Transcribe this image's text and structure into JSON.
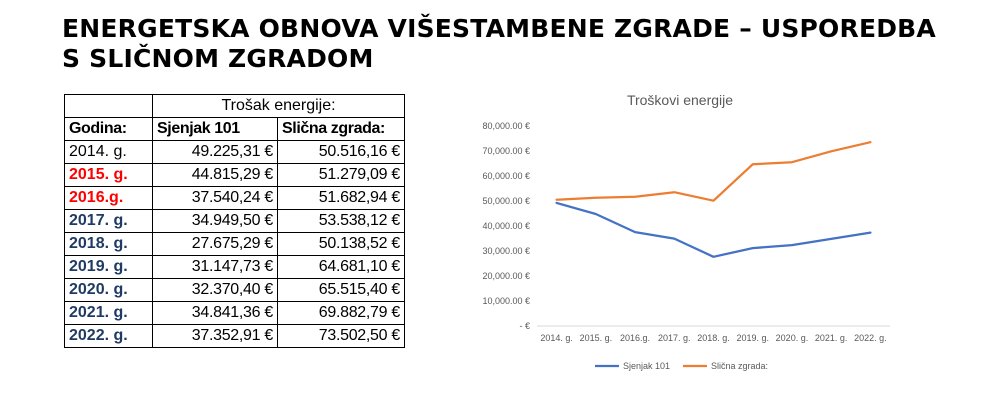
{
  "heading": {
    "line1": "ENERGETSKA OBNOVA VIŠESTAMBENE ZGRADE – USPOREDBA",
    "line2": "S SLIČNOM ZGRADOM"
  },
  "table": {
    "group_header": "Trošak energije:",
    "columns": [
      "Godina:",
      "Sjenjak 101",
      "Slična zgrada:"
    ],
    "rows": [
      {
        "year": "2014. g.",
        "a": "49.225,31 €",
        "b": "50.516,16 €",
        "color": "#000000"
      },
      {
        "year": "2015. g.",
        "a": "44.815,29 €",
        "b": "51.279,09 €",
        "color": "#ff0000"
      },
      {
        "year": "2016.g.",
        "a": "37.540,24 €",
        "b": "51.682,94 €",
        "color": "#ff0000"
      },
      {
        "year": "2017. g.",
        "a": "34.949,50 €",
        "b": "53.538,12 €",
        "color": "#1f3b63"
      },
      {
        "year": "2018. g.",
        "a": "27.675,29 €",
        "b": "50.138,52 €",
        "color": "#1f3b63"
      },
      {
        "year": "2019. g.",
        "a": "31.147,73 €",
        "b": "64.681,10 €",
        "color": "#1f3b63"
      },
      {
        "year": "2020. g.",
        "a": "32.370,40 €",
        "b": "65.515,40 €",
        "color": "#1f3b63"
      },
      {
        "year": "2021. g.",
        "a": "34.841,36 €",
        "b": "69.882,79 €",
        "color": "#1f3b63"
      },
      {
        "year": "2022. g.",
        "a": "37.352,91 €",
        "b": "73.502,50 €",
        "color": "#1f3b63"
      }
    ]
  },
  "chart_data": {
    "type": "line",
    "title": "Troškovi energije",
    "categories": [
      "2014. g.",
      "2015. g.",
      "2016.g.",
      "2017. g.",
      "2018. g.",
      "2019. g.",
      "2020. g.",
      "2021. g.",
      "2022. g."
    ],
    "series": [
      {
        "name": "Sjenjak 101",
        "color": "#4472c4",
        "values": [
          49225.31,
          44815.29,
          37540.24,
          34949.5,
          27675.29,
          31147.73,
          32370.4,
          34841.36,
          37352.91
        ]
      },
      {
        "name": "Slična zgrada:",
        "color": "#ed7d31",
        "values": [
          50516.16,
          51279.09,
          51682.94,
          53538.12,
          50138.52,
          64681.1,
          65515.4,
          69882.79,
          73502.5
        ]
      }
    ],
    "yticks": [
      "-  €",
      "10,000.00 €",
      "20,000.00 €",
      "30,000.00 €",
      "40,000.00 €",
      "50,000.00 €",
      "60,000.00 €",
      "70,000.00 €",
      "80,000.00 €"
    ],
    "ylim": [
      0,
      80000
    ],
    "grid": false,
    "legend": "bottom"
  }
}
